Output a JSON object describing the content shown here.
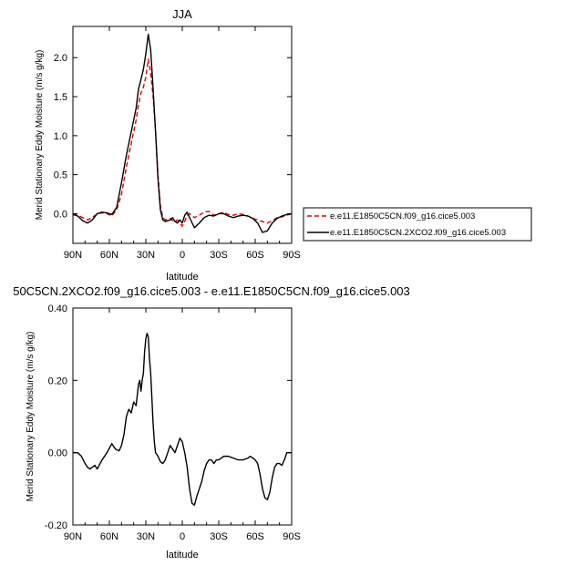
{
  "chart_data": [
    {
      "type": "line",
      "title": "JJA",
      "xlabel": "latitude",
      "ylabel": "Merid Stationary Eddy Moisture (m/s g/kg)",
      "xlim": [
        90,
        -90
      ],
      "ylim": [
        -0.38,
        2.4
      ],
      "x_ticks": [
        90,
        60,
        30,
        0,
        -30,
        -60,
        -90
      ],
      "x_tick_labels": [
        "90N",
        "60N",
        "30N",
        "0",
        "30S",
        "60S",
        "90S"
      ],
      "y_ticks": [
        0.0,
        0.5,
        1.0,
        1.5,
        2.0
      ],
      "y_tick_labels": [
        "0.0",
        "0.5",
        "1.0",
        "1.5",
        "2.0"
      ],
      "legend": "outside-right",
      "series": [
        {
          "name": "e.e11.E1850C5CN.f09_g16.cice5.003",
          "color": "#dd0000",
          "dash": "dashed",
          "x": [
            90,
            86,
            82,
            78,
            74,
            70,
            66,
            62,
            58,
            54,
            50,
            46,
            42,
            38,
            36,
            34,
            32,
            30,
            28,
            26,
            24,
            22,
            20,
            18,
            16,
            14,
            12,
            10,
            8,
            6,
            4,
            2,
            0,
            -2,
            -4,
            -6,
            -10,
            -14,
            -18,
            -22,
            -26,
            -30,
            -34,
            -38,
            -42,
            -46,
            -50,
            -54,
            -58,
            -62,
            -66,
            -70,
            -74,
            -78,
            -82,
            -86,
            -90
          ],
          "y": [
            -0.01,
            -0.02,
            -0.05,
            -0.08,
            -0.05,
            0.0,
            0.01,
            0.0,
            -0.03,
            0.05,
            0.25,
            0.6,
            0.9,
            1.2,
            1.4,
            1.55,
            1.62,
            1.75,
            1.98,
            1.8,
            1.5,
            1.05,
            0.5,
            0.1,
            -0.05,
            -0.08,
            -0.07,
            -0.06,
            -0.09,
            -0.1,
            -0.08,
            -0.12,
            -0.16,
            -0.1,
            -0.02,
            0.0,
            -0.05,
            -0.02,
            0.02,
            0.03,
            -0.02,
            0.0,
            0.02,
            -0.01,
            -0.02,
            0.0,
            -0.01,
            -0.03,
            -0.06,
            -0.08,
            -0.1,
            -0.12,
            -0.09,
            -0.05,
            -0.04,
            -0.02,
            0.0
          ]
        },
        {
          "name": "e.e11.E1850C5CN.2XCO2.f09_g16.cice5.003",
          "color": "#000000",
          "dash": "solid",
          "x": [
            90,
            86,
            82,
            78,
            74,
            70,
            66,
            62,
            58,
            54,
            50,
            46,
            42,
            38,
            36,
            34,
            32,
            30,
            28,
            26,
            24,
            22,
            20,
            18,
            16,
            14,
            12,
            10,
            8,
            6,
            4,
            2,
            0,
            -2,
            -4,
            -6,
            -10,
            -14,
            -18,
            -22,
            -26,
            -30,
            -34,
            -38,
            -42,
            -46,
            -50,
            -54,
            -58,
            -62,
            -66,
            -70,
            -74,
            -78,
            -82,
            -86,
            -90
          ],
          "y": [
            -0.01,
            -0.03,
            -0.09,
            -0.12,
            -0.08,
            0.0,
            0.02,
            0.01,
            -0.01,
            0.08,
            0.4,
            0.75,
            1.05,
            1.35,
            1.6,
            1.72,
            1.85,
            2.05,
            2.3,
            2.1,
            1.6,
            1.05,
            0.45,
            0.05,
            -0.08,
            -0.1,
            -0.09,
            -0.08,
            -0.05,
            -0.1,
            -0.12,
            -0.08,
            -0.12,
            -0.02,
            0.02,
            -0.05,
            -0.18,
            -0.12,
            -0.05,
            -0.02,
            -0.03,
            0.0,
            0.0,
            -0.03,
            -0.05,
            -0.03,
            -0.02,
            -0.03,
            -0.06,
            -0.12,
            -0.24,
            -0.22,
            -0.12,
            -0.06,
            -0.03,
            -0.01,
            0.0
          ]
        }
      ]
    },
    {
      "type": "line",
      "title": "50C5CN.2XCO2.f09_g16.cice5.003 - e.e11.E1850C5CN.f09_g16.cice5.003",
      "xlabel": "latitude",
      "ylabel": "Merid Stationary Eddy Moisture (m/s g/kg)",
      "xlim": [
        90,
        -90
      ],
      "ylim": [
        -0.2,
        0.4
      ],
      "x_ticks": [
        90,
        60,
        30,
        0,
        -30,
        -60,
        -90
      ],
      "x_tick_labels": [
        "90N",
        "60N",
        "30N",
        "0",
        "30S",
        "60S",
        "90S"
      ],
      "y_ticks": [
        -0.2,
        0.0,
        0.2,
        0.4
      ],
      "y_tick_labels": [
        "-0.20",
        "0.00",
        "0.20",
        "0.40"
      ],
      "series": [
        {
          "color": "#000000",
          "dash": "solid",
          "x": [
            90,
            86,
            83,
            80,
            78,
            76,
            74,
            72,
            70,
            66,
            62,
            58,
            55,
            52,
            50,
            48,
            46,
            44,
            42,
            40,
            38,
            36,
            35,
            34,
            33,
            32,
            31,
            30,
            29,
            28,
            27,
            26,
            25,
            24,
            23,
            22,
            20,
            18,
            16,
            14,
            12,
            10,
            8,
            6,
            4,
            2,
            0,
            -2,
            -4,
            -6,
            -8,
            -10,
            -12,
            -14,
            -16,
            -18,
            -20,
            -22,
            -24,
            -26,
            -28,
            -30,
            -34,
            -38,
            -42,
            -46,
            -50,
            -54,
            -56,
            -58,
            -60,
            -62,
            -64,
            -66,
            -68,
            -70,
            -72,
            -74,
            -76,
            -78,
            -80,
            -82,
            -84,
            -86,
            -88,
            -90
          ],
          "y": [
            0.0,
            0.0,
            -0.01,
            -0.03,
            -0.04,
            -0.045,
            -0.04,
            -0.035,
            -0.045,
            -0.02,
            0.0,
            0.025,
            0.01,
            0.005,
            0.02,
            0.05,
            0.1,
            0.12,
            0.11,
            0.14,
            0.13,
            0.19,
            0.2,
            0.17,
            0.2,
            0.22,
            0.28,
            0.315,
            0.33,
            0.32,
            0.26,
            0.22,
            0.15,
            0.08,
            0.03,
            0.0,
            -0.01,
            -0.025,
            -0.03,
            -0.02,
            0.0,
            0.02,
            0.01,
            0.0,
            0.02,
            0.04,
            0.03,
            0.0,
            -0.04,
            -0.1,
            -0.14,
            -0.145,
            -0.12,
            -0.1,
            -0.08,
            -0.05,
            -0.03,
            -0.02,
            -0.02,
            -0.03,
            -0.02,
            -0.02,
            -0.01,
            -0.01,
            -0.015,
            -0.02,
            -0.02,
            -0.015,
            -0.01,
            -0.015,
            -0.02,
            -0.03,
            -0.06,
            -0.1,
            -0.125,
            -0.13,
            -0.11,
            -0.07,
            -0.04,
            -0.03,
            -0.03,
            -0.035,
            -0.02,
            0.0,
            0.0,
            0.0
          ]
        }
      ]
    }
  ]
}
